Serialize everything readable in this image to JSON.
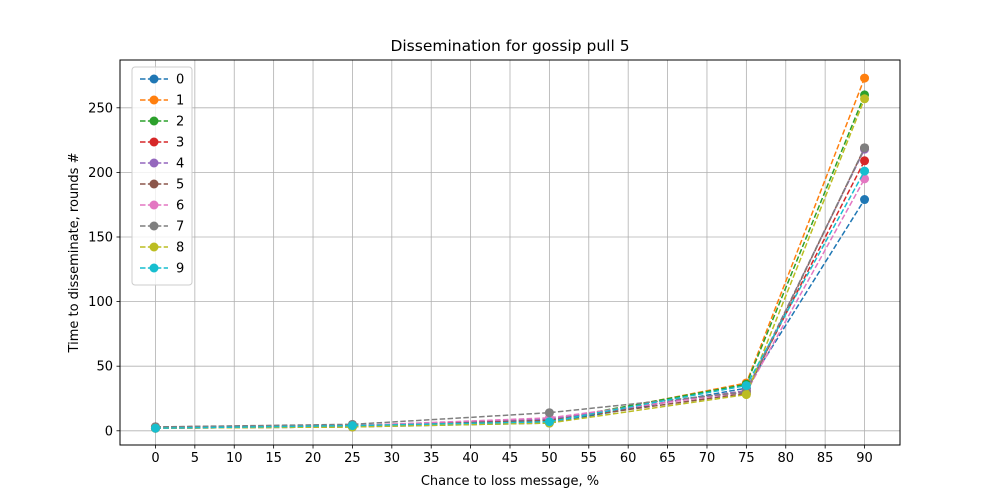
{
  "chart_data": {
    "type": "line",
    "title": "Dissemination for gossip pull 5",
    "xlabel": "Chance to loss message, %",
    "ylabel": "Time to disseminate, rounds #",
    "x": [
      0,
      25,
      50,
      75,
      90
    ],
    "xticks": [
      0,
      5,
      10,
      15,
      20,
      25,
      30,
      35,
      40,
      45,
      50,
      55,
      60,
      65,
      70,
      75,
      80,
      85,
      90
    ],
    "yticks": [
      0,
      50,
      100,
      150,
      200,
      250
    ],
    "xlim": [
      -4.5,
      94.5
    ],
    "ylim": [
      -11,
      287
    ],
    "grid": true,
    "legend_position": "top-left",
    "series": [
      {
        "name": "0",
        "color": "#1f77b4",
        "values": [
          2,
          3,
          6,
          33,
          179
        ]
      },
      {
        "name": "1",
        "color": "#ff7f0e",
        "values": [
          2,
          3,
          7,
          37,
          273
        ]
      },
      {
        "name": "2",
        "color": "#2ca02c",
        "values": [
          3,
          4,
          8,
          36,
          260
        ]
      },
      {
        "name": "3",
        "color": "#d62728",
        "values": [
          3,
          4,
          9,
          31,
          209
        ]
      },
      {
        "name": "4",
        "color": "#9467bd",
        "values": [
          3,
          4,
          9,
          31,
          218
        ]
      },
      {
        "name": "5",
        "color": "#8c564b",
        "values": [
          2,
          4,
          8,
          29,
          219
        ]
      },
      {
        "name": "6",
        "color": "#e377c2",
        "values": [
          2,
          4,
          10,
          30,
          195
        ]
      },
      {
        "name": "7",
        "color": "#7f7f7f",
        "values": [
          3,
          5,
          14,
          30,
          219
        ]
      },
      {
        "name": "8",
        "color": "#bcbd22",
        "values": [
          2,
          3,
          6,
          28,
          257
        ]
      },
      {
        "name": "9",
        "color": "#17becf",
        "values": [
          2,
          4,
          7,
          35,
          201
        ]
      }
    ]
  }
}
